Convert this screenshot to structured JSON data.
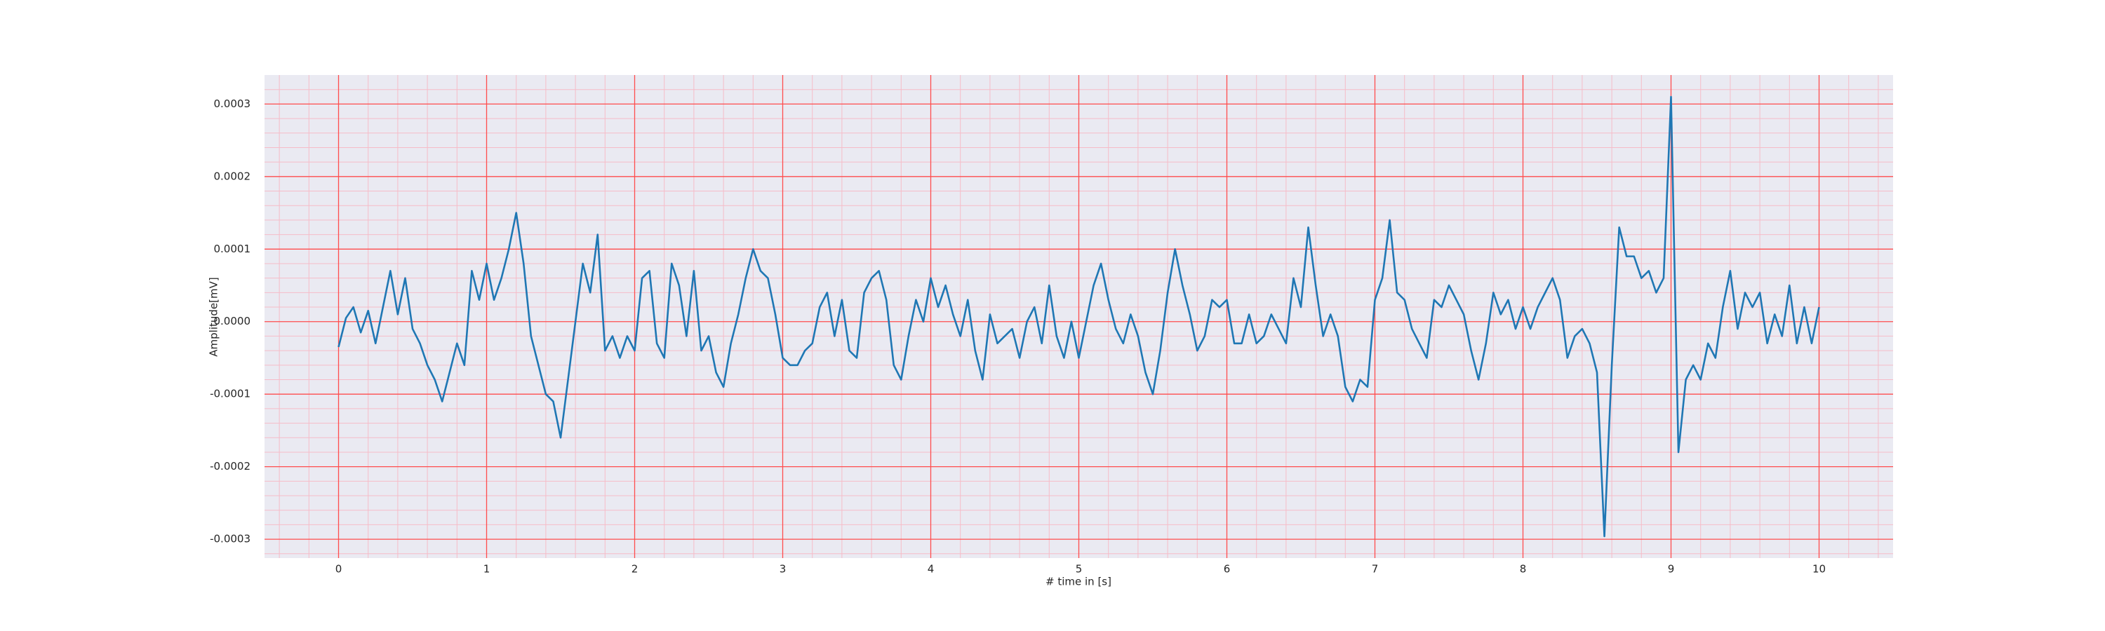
{
  "chart_data": {
    "type": "line",
    "xlabel": "# time in [s]",
    "ylabel": "Amplitude[mV]",
    "color": "#1f77b4",
    "background": "#eaeaf2",
    "grid": true,
    "grid_color": "#ff4d4d",
    "minor_grid": true,
    "minor_grid_color": "#f6bcc8",
    "xlim": [
      -0.5,
      10.5
    ],
    "xticks": [
      0,
      1,
      2,
      3,
      4,
      5,
      6,
      7,
      8,
      9,
      10
    ],
    "ylim": [
      -0.000326,
      0.00034
    ],
    "yticks": [
      -0.0003,
      -0.0002,
      -0.0001,
      {
        "value": 0,
        "label": "0.0000"
      },
      0.0001,
      0.0002,
      0.0003
    ],
    "minor_xticks": [
      -0.4,
      -0.2,
      0.2,
      0.4,
      0.6,
      0.8,
      1.2,
      1.4,
      1.6,
      1.8,
      2.2,
      2.4,
      2.6,
      2.8,
      3.2,
      3.4,
      3.6,
      3.8,
      4.2,
      4.4,
      4.6,
      4.8,
      5.2,
      5.4,
      5.6,
      5.8,
      6.2,
      6.4,
      6.6,
      6.8,
      7.2,
      7.4,
      7.6,
      7.8,
      8.2,
      8.4,
      8.6,
      8.8,
      9.2,
      9.4,
      9.6,
      9.8,
      10.2,
      10.4
    ],
    "minor_yticks": [
      -0.00032,
      -0.00028,
      -0.00026,
      -0.00024,
      -0.00022,
      -0.00018,
      -0.00016,
      -0.00014,
      -0.00012,
      -8e-05,
      -6e-05,
      -4e-05,
      -2e-05,
      2e-05,
      4e-05,
      6e-05,
      8e-05,
      0.00012,
      0.00014,
      0.00016,
      0.00018,
      0.00022,
      0.00024,
      0.00026,
      0.00028,
      0.00032
    ],
    "x": [
      0,
      0.05,
      0.1,
      0.15,
      0.2,
      0.25,
      0.3,
      0.35,
      0.4,
      0.45,
      0.5,
      0.55,
      0.6,
      0.65,
      0.7,
      0.75,
      0.8,
      0.85,
      0.9,
      0.95,
      1,
      1.05,
      1.1,
      1.15,
      1.2,
      1.25,
      1.3,
      1.35,
      1.4,
      1.45,
      1.5,
      1.55,
      1.6,
      1.65,
      1.7,
      1.75,
      1.8,
      1.85,
      1.9,
      1.95,
      2,
      2.05,
      2.1,
      2.15,
      2.2,
      2.25,
      2.3,
      2.35,
      2.4,
      2.45,
      2.5,
      2.55,
      2.6,
      2.65,
      2.7,
      2.75,
      2.8,
      2.85,
      2.9,
      2.95,
      3,
      3.05,
      3.1,
      3.15,
      3.2,
      3.25,
      3.3,
      3.35,
      3.4,
      3.45,
      3.5,
      3.55,
      3.6,
      3.65,
      3.7,
      3.75,
      3.8,
      3.85,
      3.9,
      3.95,
      4,
      4.05,
      4.1,
      4.15,
      4.2,
      4.25,
      4.3,
      4.35,
      4.4,
      4.45,
      4.5,
      4.55,
      4.6,
      4.65,
      4.7,
      4.75,
      4.8,
      4.85,
      4.9,
      4.95,
      5,
      5.05,
      5.1,
      5.15,
      5.2,
      5.25,
      5.3,
      5.35,
      5.4,
      5.45,
      5.5,
      5.55,
      5.6,
      5.65,
      5.7,
      5.75,
      5.8,
      5.85,
      5.9,
      5.95,
      6,
      6.05,
      6.1,
      6.15,
      6.2,
      6.25,
      6.3,
      6.35,
      6.4,
      6.45,
      6.5,
      6.55,
      6.6,
      6.65,
      6.7,
      6.75,
      6.8,
      6.85,
      6.9,
      6.95,
      7,
      7.05,
      7.1,
      7.15,
      7.2,
      7.25,
      7.3,
      7.35,
      7.4,
      7.45,
      7.5,
      7.55,
      7.6,
      7.65,
      7.7,
      7.75,
      7.8,
      7.85,
      7.9,
      7.95,
      8,
      8.05,
      8.1,
      8.15,
      8.2,
      8.25,
      8.3,
      8.35,
      8.4,
      8.45,
      8.5,
      8.55,
      8.6,
      8.65,
      8.7,
      8.75,
      8.8,
      8.85,
      8.9,
      8.95,
      9,
      9.05,
      9.1,
      9.15,
      9.2,
      9.25,
      9.3,
      9.35,
      9.4,
      9.45,
      9.5,
      9.55,
      9.6,
      9.65,
      9.7,
      9.75,
      9.8,
      9.85,
      9.9,
      9.95,
      10
    ],
    "values": [
      -3.5e-05,
      5e-06,
      2e-05,
      -1.5e-05,
      1.5e-05,
      -3e-05,
      2e-05,
      7e-05,
      1e-05,
      6e-05,
      -1e-05,
      -3e-05,
      -6e-05,
      -8e-05,
      -0.00011,
      -7e-05,
      -3e-05,
      -6e-05,
      7e-05,
      3e-05,
      8e-05,
      3e-05,
      6e-05,
      0.0001,
      0.00015,
      8e-05,
      -2e-05,
      -6e-05,
      -0.0001,
      -0.00011,
      -0.00016,
      -8e-05,
      0,
      8e-05,
      4e-05,
      0.00012,
      -4e-05,
      -2e-05,
      -5e-05,
      -2e-05,
      -4e-05,
      6e-05,
      7e-05,
      -3e-05,
      -5e-05,
      8e-05,
      5e-05,
      -2e-05,
      7e-05,
      -4e-05,
      -2e-05,
      -7e-05,
      -9e-05,
      -3e-05,
      1e-05,
      6e-05,
      0.0001,
      7e-05,
      6e-05,
      1e-05,
      -5e-05,
      -6e-05,
      -6e-05,
      -4e-05,
      -3e-05,
      2e-05,
      4e-05,
      -2e-05,
      3e-05,
      -4e-05,
      -5e-05,
      4e-05,
      6e-05,
      7e-05,
      3e-05,
      -6e-05,
      -8e-05,
      -2e-05,
      3e-05,
      0,
      6e-05,
      2e-05,
      5e-05,
      1e-05,
      -2e-05,
      3e-05,
      -4e-05,
      -8e-05,
      1e-05,
      -3e-05,
      -2e-05,
      -1e-05,
      -5e-05,
      0,
      2e-05,
      -3e-05,
      5e-05,
      -2e-05,
      -5e-05,
      0,
      -5e-05,
      0,
      5e-05,
      8e-05,
      3e-05,
      -1e-05,
      -3e-05,
      1e-05,
      -2e-05,
      -7e-05,
      -0.0001,
      -4e-05,
      4e-05,
      0.0001,
      5e-05,
      1e-05,
      -4e-05,
      -2e-05,
      3e-05,
      2e-05,
      3e-05,
      -3e-05,
      -3e-05,
      1e-05,
      -3e-05,
      -2e-05,
      1e-05,
      -1e-05,
      -3e-05,
      6e-05,
      2e-05,
      0.00013,
      5e-05,
      -2e-05,
      1e-05,
      -2e-05,
      -9e-05,
      -0.00011,
      -8e-05,
      -9e-05,
      3e-05,
      6e-05,
      0.00014,
      4e-05,
      3e-05,
      -1e-05,
      -3e-05,
      -5e-05,
      3e-05,
      2e-05,
      5e-05,
      3e-05,
      1e-05,
      -4e-05,
      -8e-05,
      -3e-05,
      4e-05,
      1e-05,
      3e-05,
      -1e-05,
      2e-05,
      -1e-05,
      2e-05,
      4e-05,
      6e-05,
      3e-05,
      -5e-05,
      -2e-05,
      -1e-05,
      -3e-05,
      -7e-05,
      -0.000296,
      -6e-05,
      0.00013,
      9e-05,
      9e-05,
      6e-05,
      7e-05,
      4e-05,
      6e-05,
      0.00031,
      -0.00018,
      -8e-05,
      -6e-05,
      -8e-05,
      -3e-05,
      -5e-05,
      2e-05,
      7e-05,
      -1e-05,
      4e-05,
      2e-05,
      4e-05,
      -3e-05,
      1e-05,
      -2e-05,
      5e-05,
      -3e-05,
      2e-05,
      -3e-05,
      2e-05
    ]
  }
}
